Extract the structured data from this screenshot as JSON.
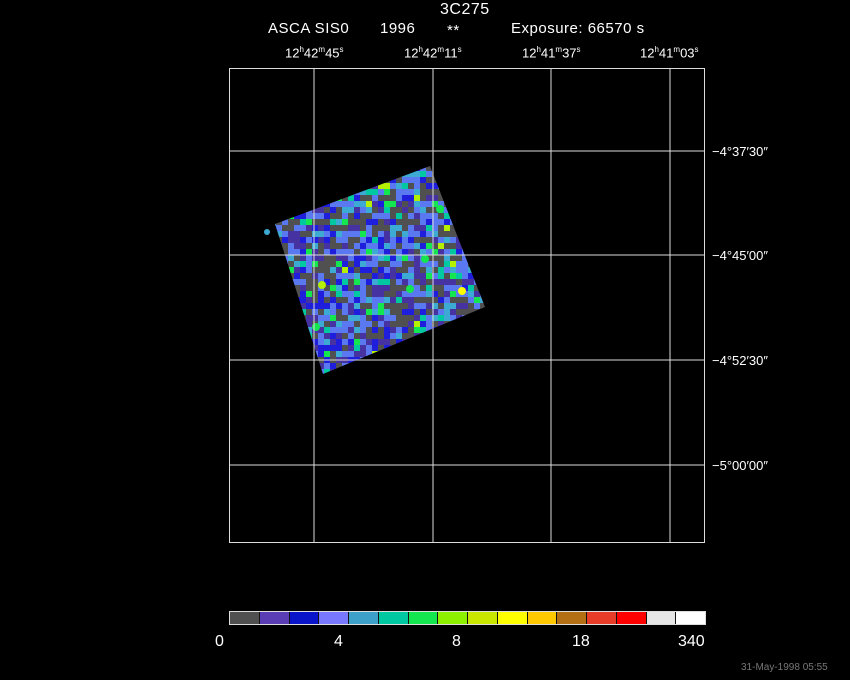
{
  "header": {
    "target": "3C275",
    "instrument": "ASCA SIS0",
    "year": "1996",
    "flag": "**",
    "exposure": "Exposure: 66570 s"
  },
  "ra_labels": [
    {
      "h": "12",
      "hs": "h",
      "m": "42",
      "ms": "m",
      "s": "45",
      "ss": "s"
    },
    {
      "h": "12",
      "hs": "h",
      "m": "42",
      "ms": "m",
      "s": "11",
      "ss": "s"
    },
    {
      "h": "12",
      "hs": "h",
      "m": "41",
      "ms": "m",
      "s": "37",
      "ss": "s"
    },
    {
      "h": "12",
      "hs": "h",
      "m": "41",
      "ms": "m",
      "s": "03",
      "ss": "s"
    }
  ],
  "dec_labels": [
    "−4°37′30″",
    "−4°45′00″",
    "−4°52′30″",
    "−5°00′00″"
  ],
  "colorbar": {
    "colors": [
      "#505050",
      "#5a3cb4",
      "#0a14c8",
      "#7878ff",
      "#3ca0c8",
      "#00c8a0",
      "#14e650",
      "#8cf000",
      "#c8e600",
      "#ffff00",
      "#ffc800",
      "#b46e14",
      "#e63c28",
      "#ff0000",
      "#e6e6e6",
      "#ffffff"
    ],
    "labels": [
      "0",
      "4",
      "8",
      "18",
      "340"
    ]
  },
  "palette": {
    "background": "#000000",
    "grid": "#dddddd",
    "image_colors": [
      "#505050",
      "#4632a0",
      "#1e1edc",
      "#5a78f0",
      "#3caad2",
      "#00c8a0",
      "#14e650",
      "#b4f000",
      "#ffff00",
      "#ff3c28"
    ]
  },
  "timestamp": "31-May-1998 05:55"
}
